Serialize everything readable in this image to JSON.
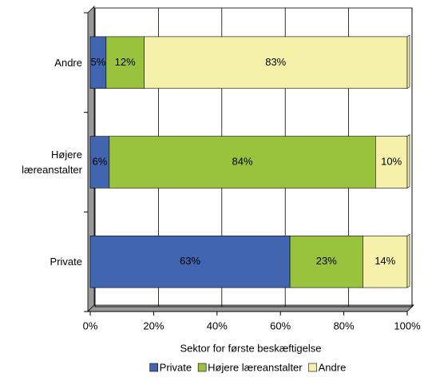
{
  "chart_data": {
    "type": "stacked-barh",
    "categories": [
      "Andre",
      "Højere læreanstalter",
      "Private"
    ],
    "series": [
      {
        "name": "Private",
        "color": "#4165b1",
        "values": [
          5,
          6,
          63
        ],
        "value_labels": [
          "5%",
          "6%",
          "63%"
        ]
      },
      {
        "name": "Højere læreanstalter",
        "color": "#99c23d",
        "values": [
          12,
          84,
          23
        ],
        "value_labels": [
          "12%",
          "84%",
          "23%"
        ]
      },
      {
        "name": "Andre",
        "color": "#f6f1aa",
        "values": [
          83,
          10,
          14
        ],
        "value_labels": [
          "83%",
          "10%",
          "14%"
        ]
      }
    ],
    "xlabel": "Sektor for første beskæftigelse",
    "xlim": [
      0,
      100
    ],
    "xticks": [
      {
        "value": 0,
        "label": "0%"
      },
      {
        "value": 20,
        "label": "20%"
      },
      {
        "value": 40,
        "label": "40%"
      },
      {
        "value": 60,
        "label": "60%"
      },
      {
        "value": 80,
        "label": "80%"
      },
      {
        "value": 100,
        "label": "100%"
      }
    ],
    "grid": true,
    "legend": "bottom"
  }
}
